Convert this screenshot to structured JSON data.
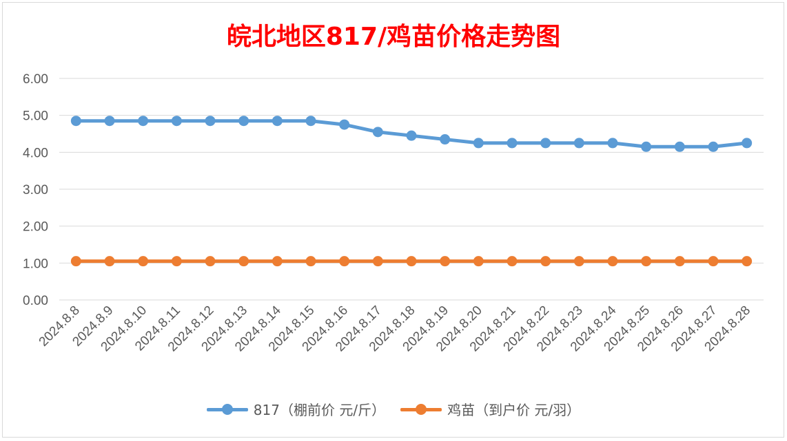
{
  "chart_data": {
    "type": "line",
    "title": "皖北地区817/鸡苗价格走势图",
    "categories": [
      "2024.8.8",
      "2024.8.9",
      "2024.8.10",
      "2024.8.11",
      "2024.8.12",
      "2024.8.13",
      "2024.8.14",
      "2024.8.15",
      "2024.8.16",
      "2024.8.17",
      "2024.8.18",
      "2024.8.19",
      "2024.8.20",
      "2024.8.21",
      "2024.8.22",
      "2024.8.23",
      "2024.8.24",
      "2024.8.25",
      "2024.8.26",
      "2024.8.27",
      "2024.8.28"
    ],
    "series": [
      {
        "name": "817（棚前价 元/斤）",
        "color": "#5b9bd5",
        "values": [
          4.85,
          4.85,
          4.85,
          4.85,
          4.85,
          4.85,
          4.85,
          4.85,
          4.75,
          4.55,
          4.45,
          4.35,
          4.25,
          4.25,
          4.25,
          4.25,
          4.25,
          4.15,
          4.15,
          4.15,
          4.25
        ]
      },
      {
        "name": "鸡苗（到户价 元/羽）",
        "color": "#ed7d31",
        "values": [
          1.05,
          1.05,
          1.05,
          1.05,
          1.05,
          1.05,
          1.05,
          1.05,
          1.05,
          1.05,
          1.05,
          1.05,
          1.05,
          1.05,
          1.05,
          1.05,
          1.05,
          1.05,
          1.05,
          1.05,
          1.05
        ]
      }
    ],
    "yticks": [
      "0.00",
      "1.00",
      "2.00",
      "3.00",
      "4.00",
      "5.00",
      "6.00"
    ],
    "ylim": [
      0,
      6
    ],
    "grid": true,
    "legend_position": "bottom",
    "title_color": "#ff0000"
  }
}
